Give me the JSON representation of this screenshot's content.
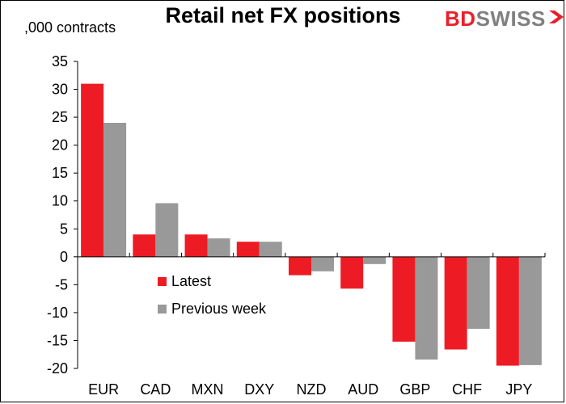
{
  "brand": {
    "logo_text_red": "BD",
    "logo_text_gray": "SWISS",
    "colors": {
      "red": "#e8202a",
      "gray": "#999999"
    }
  },
  "chart_data": {
    "type": "bar",
    "title": "Retail net FX positions",
    "ylabel": ",000 contracts",
    "xlabel": "",
    "categories": [
      "EUR",
      "CAD",
      "MXN",
      "DXY",
      "NZD",
      "AUD",
      "GBP",
      "CHF",
      "JPY"
    ],
    "series": [
      {
        "name": "Latest",
        "color": "#ed1c24",
        "values": [
          31,
          4,
          4,
          2.7,
          -3.3,
          -5.7,
          -15.2,
          -16.6,
          -19.5
        ]
      },
      {
        "name": "Previous week",
        "color": "#999999",
        "values": [
          24,
          9.6,
          3.3,
          2.7,
          -2.6,
          -1.3,
          -18.4,
          -12.9,
          -19.4
        ]
      }
    ],
    "ylim": [
      -20,
      35
    ],
    "yticks": [
      "35",
      "30",
      "25",
      "20",
      "15",
      "10",
      "5",
      "0",
      "-5",
      "-10",
      "-15",
      "-20"
    ],
    "legend_position": "center-left",
    "grid": false
  }
}
